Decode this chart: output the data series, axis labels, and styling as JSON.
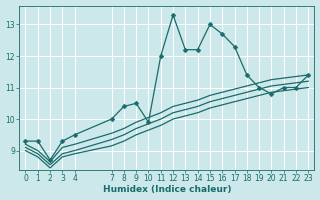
{
  "background_color": "#cce8eb",
  "grid_color": "#ffffff",
  "line_color": "#1a6b6b",
  "marker": "D",
  "markersize": 2.5,
  "linewidth": 0.9,
  "series1_x": [
    0,
    1,
    2,
    3,
    4,
    7,
    8,
    9,
    10,
    11,
    12,
    13,
    14,
    15,
    16,
    17,
    18,
    19,
    20,
    21,
    22,
    23
  ],
  "series1_y": [
    9.3,
    9.3,
    8.7,
    9.3,
    9.5,
    10.0,
    10.4,
    10.5,
    9.9,
    12.0,
    13.3,
    12.2,
    12.2,
    13.0,
    12.7,
    12.3,
    11.4,
    11.0,
    10.8,
    11.0,
    11.0,
    11.4
  ],
  "series2_x": [
    0,
    1,
    2,
    3,
    4,
    7,
    8,
    9,
    10,
    11,
    12,
    13,
    14,
    15,
    16,
    17,
    18,
    19,
    20,
    21,
    22,
    23
  ],
  "series2_y": [
    9.2,
    9.0,
    8.65,
    9.1,
    9.2,
    9.55,
    9.7,
    9.9,
    10.05,
    10.2,
    10.4,
    10.5,
    10.6,
    10.75,
    10.85,
    10.95,
    11.05,
    11.15,
    11.25,
    11.3,
    11.35,
    11.4
  ],
  "series3_x": [
    0,
    1,
    2,
    3,
    4,
    7,
    8,
    9,
    10,
    11,
    12,
    13,
    14,
    15,
    16,
    17,
    18,
    19,
    20,
    21,
    22,
    23
  ],
  "series3_y": [
    9.1,
    8.9,
    8.55,
    8.9,
    9.0,
    9.35,
    9.5,
    9.7,
    9.85,
    10.0,
    10.2,
    10.3,
    10.4,
    10.55,
    10.65,
    10.75,
    10.85,
    10.95,
    11.05,
    11.1,
    11.15,
    11.2
  ],
  "series4_x": [
    0,
    1,
    2,
    3,
    4,
    7,
    8,
    9,
    10,
    11,
    12,
    13,
    14,
    15,
    16,
    17,
    18,
    19,
    20,
    21,
    22,
    23
  ],
  "series4_y": [
    9.0,
    8.8,
    8.45,
    8.8,
    8.9,
    9.15,
    9.3,
    9.5,
    9.65,
    9.8,
    10.0,
    10.1,
    10.2,
    10.35,
    10.45,
    10.55,
    10.65,
    10.75,
    10.85,
    10.9,
    10.95,
    11.0
  ],
  "xlabel": "Humidex (Indice chaleur)",
  "xlabel_fontsize": 6.5,
  "tick_fontsize": 5.5,
  "xlim": [
    -0.5,
    23.5
  ],
  "ylim": [
    8.4,
    13.6
  ],
  "yticks": [
    9,
    10,
    11,
    12,
    13
  ],
  "xtick_positions": [
    0,
    1,
    2,
    3,
    4,
    7,
    8,
    9,
    10,
    11,
    12,
    13,
    14,
    15,
    16,
    17,
    18,
    19,
    20,
    21,
    22,
    23
  ],
  "xtick_labels": [
    "0",
    "1",
    "2",
    "3",
    "4",
    "7",
    "8",
    "9",
    "10",
    "11",
    "12",
    "13",
    "14",
    "15",
    "16",
    "17",
    "18",
    "19",
    "20",
    "21",
    "22",
    "23"
  ]
}
